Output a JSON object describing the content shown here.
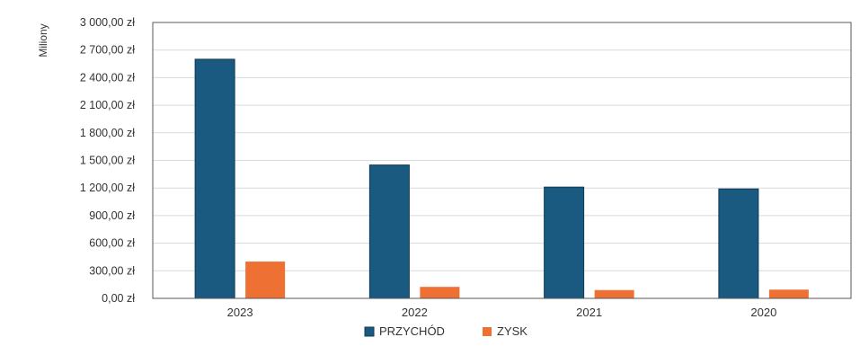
{
  "chart_data": {
    "type": "bar",
    "ylabel": "Miliony",
    "categories": [
      "2023",
      "2022",
      "2021",
      "2020"
    ],
    "ylim": [
      0,
      3000
    ],
    "yticks": [
      0,
      300,
      600,
      900,
      1200,
      1500,
      1800,
      2100,
      2400,
      2700,
      3000
    ],
    "ytick_labels": [
      "0,00 zł",
      "300,00 zł",
      "600,00 zł",
      "900,00 zł",
      "1 200,00 zł",
      "1 500,00 zł",
      "1 800,00 zł",
      "2 100,00 zł",
      "2 400,00 zł",
      "2 700,00 zł",
      "3 000,00 zł"
    ],
    "grid": true,
    "legend_position": "bottom-center",
    "series": [
      {
        "name": "PRZYCHÓD",
        "color": "#1a5a80",
        "values": [
          2600,
          1450,
          1210,
          1190
        ]
      },
      {
        "name": "ZYSK",
        "color": "#ee7133",
        "values": [
          400,
          125,
          90,
          95
        ]
      }
    ]
  }
}
